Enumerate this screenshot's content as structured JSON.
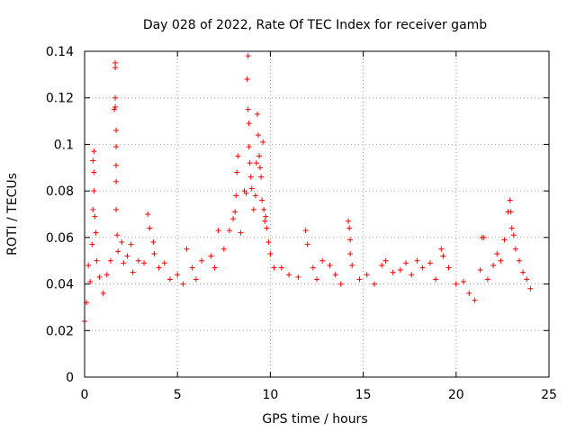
{
  "chart_data": {
    "type": "scatter",
    "title": "Day 028 of 2022, Rate Of TEC Index for receiver gamb",
    "xlabel": "GPS time / hours",
    "ylabel": "ROTI / TECUs",
    "xlim": [
      0,
      25
    ],
    "ylim": [
      0,
      0.14
    ],
    "xticks": [
      0,
      5,
      10,
      15,
      20,
      25
    ],
    "yticks": [
      0,
      0.02,
      0.04,
      0.06,
      0.08,
      0.1,
      0.12,
      0.14
    ],
    "xtick_labels": [
      "0",
      "5",
      "10",
      "15",
      "20",
      "25"
    ],
    "ytick_labels": [
      "0",
      "0.02",
      "0.04",
      "0.06",
      "0.08",
      "0.1",
      "0.12",
      "0.14"
    ],
    "grid": true,
    "marker": "+",
    "color": "#ff0000",
    "series": [
      {
        "points": [
          [
            0.0,
            0.024
          ],
          [
            0.1,
            0.032
          ],
          [
            0.2,
            0.048
          ],
          [
            0.3,
            0.041
          ],
          [
            0.4,
            0.057
          ],
          [
            0.45,
            0.072
          ],
          [
            0.45,
            0.093
          ],
          [
            0.5,
            0.097
          ],
          [
            0.5,
            0.088
          ],
          [
            0.5,
            0.08
          ],
          [
            0.55,
            0.069
          ],
          [
            0.6,
            0.062
          ],
          [
            0.65,
            0.05
          ],
          [
            0.8,
            0.043
          ],
          [
            1.0,
            0.036
          ],
          [
            1.2,
            0.044
          ],
          [
            1.4,
            0.05
          ],
          [
            1.6,
            0.115
          ],
          [
            1.65,
            0.133
          ],
          [
            1.65,
            0.135
          ],
          [
            1.65,
            0.12
          ],
          [
            1.65,
            0.116
          ],
          [
            1.7,
            0.106
          ],
          [
            1.7,
            0.099
          ],
          [
            1.7,
            0.091
          ],
          [
            1.7,
            0.084
          ],
          [
            1.7,
            0.072
          ],
          [
            1.75,
            0.061
          ],
          [
            1.8,
            0.054
          ],
          [
            2.0,
            0.058
          ],
          [
            2.1,
            0.049
          ],
          [
            2.3,
            0.052
          ],
          [
            2.5,
            0.057
          ],
          [
            2.6,
            0.045
          ],
          [
            2.9,
            0.05
          ],
          [
            3.2,
            0.049
          ],
          [
            3.4,
            0.07
          ],
          [
            3.5,
            0.064
          ],
          [
            3.7,
            0.058
          ],
          [
            3.75,
            0.053
          ],
          [
            4.0,
            0.047
          ],
          [
            4.3,
            0.049
          ],
          [
            4.6,
            0.042
          ],
          [
            5.0,
            0.044
          ],
          [
            5.3,
            0.04
          ],
          [
            5.5,
            0.055
          ],
          [
            5.8,
            0.047
          ],
          [
            6.0,
            0.042
          ],
          [
            6.3,
            0.05
          ],
          [
            6.8,
            0.052
          ],
          [
            7.0,
            0.047
          ],
          [
            7.2,
            0.063
          ],
          [
            7.5,
            0.055
          ],
          [
            7.8,
            0.063
          ],
          [
            8.0,
            0.068
          ],
          [
            8.1,
            0.071
          ],
          [
            8.15,
            0.078
          ],
          [
            8.2,
            0.088
          ],
          [
            8.25,
            0.095
          ],
          [
            8.4,
            0.062
          ],
          [
            8.6,
            0.08
          ],
          [
            8.7,
            0.079
          ],
          [
            8.75,
            0.128
          ],
          [
            8.8,
            0.138
          ],
          [
            8.8,
            0.115
          ],
          [
            8.85,
            0.109
          ],
          [
            8.85,
            0.099
          ],
          [
            8.9,
            0.092
          ],
          [
            8.95,
            0.086
          ],
          [
            9.0,
            0.081
          ],
          [
            9.1,
            0.072
          ],
          [
            9.2,
            0.078
          ],
          [
            9.25,
            0.092
          ],
          [
            9.3,
            0.113
          ],
          [
            9.35,
            0.104
          ],
          [
            9.4,
            0.095
          ],
          [
            9.45,
            0.09
          ],
          [
            9.5,
            0.086
          ],
          [
            9.55,
            0.076
          ],
          [
            9.6,
            0.101
          ],
          [
            9.65,
            0.072
          ],
          [
            9.7,
            0.067
          ],
          [
            9.75,
            0.069
          ],
          [
            9.8,
            0.064
          ],
          [
            9.9,
            0.058
          ],
          [
            10.0,
            0.053
          ],
          [
            10.2,
            0.047
          ],
          [
            10.6,
            0.047
          ],
          [
            11.0,
            0.044
          ],
          [
            11.5,
            0.043
          ],
          [
            11.9,
            0.063
          ],
          [
            12.0,
            0.057
          ],
          [
            12.3,
            0.047
          ],
          [
            12.5,
            0.042
          ],
          [
            12.8,
            0.05
          ],
          [
            13.2,
            0.048
          ],
          [
            13.5,
            0.044
          ],
          [
            13.8,
            0.04
          ],
          [
            14.2,
            0.067
          ],
          [
            14.25,
            0.064
          ],
          [
            14.3,
            0.059
          ],
          [
            14.3,
            0.053
          ],
          [
            14.4,
            0.048
          ],
          [
            14.8,
            0.042
          ],
          [
            15.2,
            0.044
          ],
          [
            15.6,
            0.04
          ],
          [
            16.0,
            0.048
          ],
          [
            16.2,
            0.05
          ],
          [
            16.6,
            0.045
          ],
          [
            17.0,
            0.046
          ],
          [
            17.3,
            0.049
          ],
          [
            17.6,
            0.044
          ],
          [
            17.9,
            0.05
          ],
          [
            18.2,
            0.047
          ],
          [
            18.6,
            0.049
          ],
          [
            18.9,
            0.042
          ],
          [
            19.2,
            0.055
          ],
          [
            19.3,
            0.052
          ],
          [
            19.6,
            0.047
          ],
          [
            20.0,
            0.04
          ],
          [
            20.4,
            0.041
          ],
          [
            20.7,
            0.036
          ],
          [
            21.0,
            0.033
          ],
          [
            21.3,
            0.046
          ],
          [
            21.4,
            0.06
          ],
          [
            21.5,
            0.06
          ],
          [
            21.7,
            0.042
          ],
          [
            22.0,
            0.048
          ],
          [
            22.2,
            0.053
          ],
          [
            22.4,
            0.05
          ],
          [
            22.6,
            0.059
          ],
          [
            22.8,
            0.071
          ],
          [
            22.9,
            0.076
          ],
          [
            22.95,
            0.071
          ],
          [
            23.0,
            0.064
          ],
          [
            23.1,
            0.061
          ],
          [
            23.2,
            0.055
          ],
          [
            23.4,
            0.05
          ],
          [
            23.6,
            0.045
          ],
          [
            23.8,
            0.042
          ],
          [
            24.0,
            0.038
          ]
        ]
      }
    ]
  }
}
